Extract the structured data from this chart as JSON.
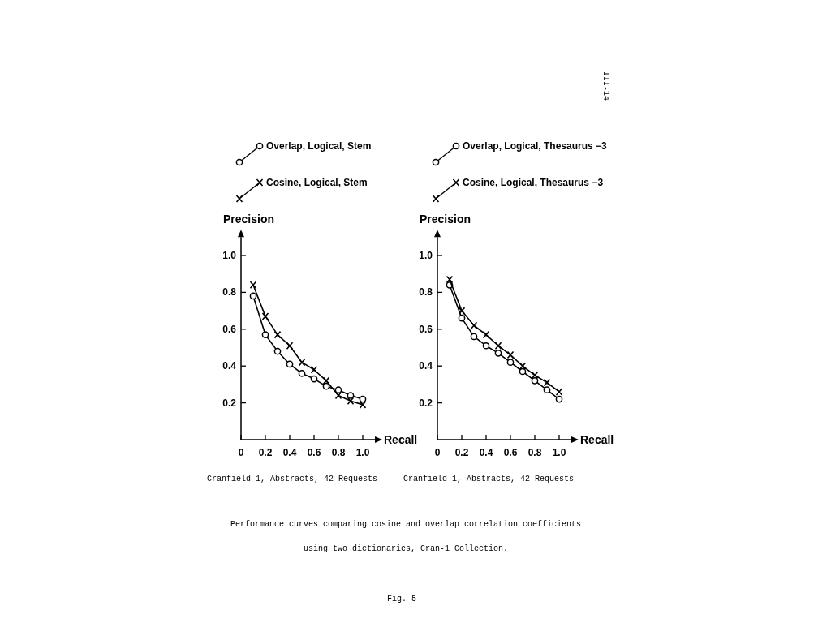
{
  "chart_data": [
    {
      "type": "line",
      "xlabel": "Recall",
      "ylabel": "Precision",
      "xlim": [
        0,
        1.1
      ],
      "ylim": [
        0,
        1.1
      ],
      "xticks": [
        0,
        0.2,
        0.4,
        0.6,
        0.8,
        {
          "value": 1,
          "label": "1.0"
        }
      ],
      "yticks": [
        0.2,
        0.4,
        0.6,
        0.8,
        {
          "value": 1,
          "label": "1.0"
        }
      ],
      "x": [
        0.1,
        0.2,
        0.3,
        0.4,
        0.5,
        0.6,
        0.7,
        0.8,
        0.9,
        1.0
      ],
      "legend": "top",
      "grid": false,
      "line_style": "solid",
      "series": [
        {
          "name": "Overlap, Logical, Stem",
          "color": "#000000",
          "marker": "circle",
          "values": [
            0.78,
            0.57,
            0.48,
            0.41,
            0.36,
            0.33,
            0.29,
            0.27,
            0.24,
            0.22
          ]
        },
        {
          "name": "Cosine, Logical, Stem",
          "color": "#000000",
          "marker": "cross",
          "values": [
            0.84,
            0.67,
            0.57,
            0.51,
            0.42,
            0.38,
            0.32,
            0.24,
            0.21,
            0.19
          ]
        }
      ],
      "annotations": [
        "Cranfield-1, Abstracts, 42 Requests",
        "Performance curves comparing cosine and overlap correlation coefficients",
        "using two dictionaries, Cran-1 Collection.",
        "Fig. 5",
        "III-14"
      ]
    },
    {
      "type": "line",
      "xlabel": "Recall",
      "ylabel": "Precision",
      "xlim": [
        0,
        1.1
      ],
      "ylim": [
        0,
        1.1
      ],
      "xticks": [
        0,
        0.2,
        0.4,
        0.6,
        0.8,
        {
          "value": 1,
          "label": "1.0"
        }
      ],
      "yticks": [
        0.2,
        0.4,
        0.6,
        0.8,
        {
          "value": 1,
          "label": "1.0"
        }
      ],
      "x": [
        0.1,
        0.2,
        0.3,
        0.4,
        0.5,
        0.6,
        0.7,
        0.8,
        0.9,
        1.0
      ],
      "legend": "top",
      "grid": false,
      "line_style": "solid",
      "series": [
        {
          "name": "Overlap, Logical, Thesaurus −3",
          "color": "#000000",
          "marker": "circle",
          "values": [
            0.84,
            0.66,
            0.56,
            0.51,
            0.47,
            0.42,
            0.37,
            0.32,
            0.27,
            0.22
          ]
        },
        {
          "name": "Cosine, Logical, Thesaurus −3",
          "color": "#000000",
          "marker": "cross",
          "values": [
            0.87,
            0.7,
            0.62,
            0.57,
            0.51,
            0.46,
            0.4,
            0.35,
            0.31,
            0.26
          ]
        }
      ],
      "annotations": [
        "Cranfield-1, Abstracts, 42 Requests"
      ]
    }
  ]
}
